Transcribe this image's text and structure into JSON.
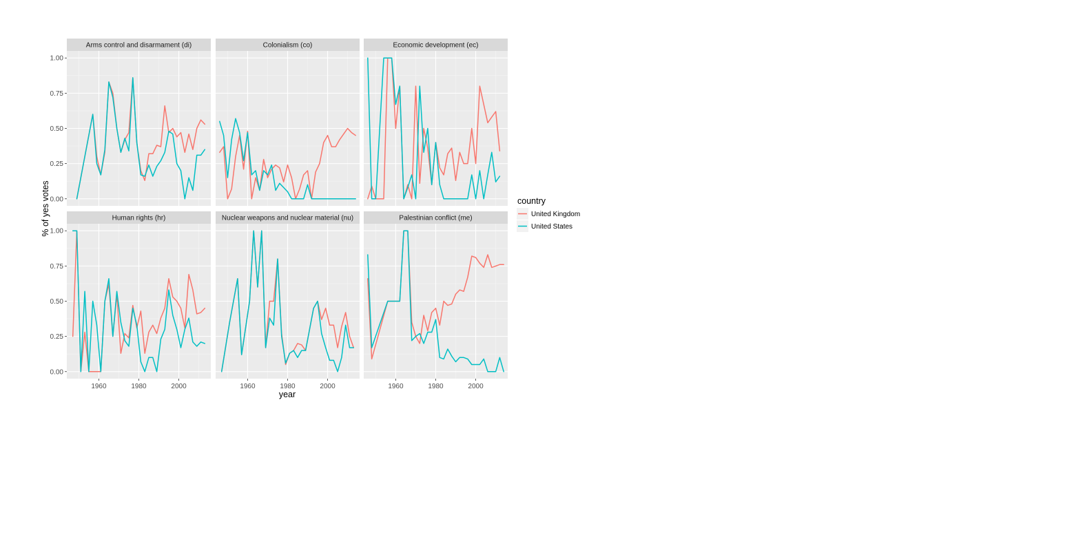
{
  "chart_data": {
    "type": "line",
    "facet_layout": "2x3 facet grid",
    "xlabel": "year",
    "ylabel": "% of yes votes",
    "xlim": [
      1944,
      2016
    ],
    "ylim": [
      -0.05,
      1.05
    ],
    "x_ticks": [
      1960,
      1980,
      2000
    ],
    "y_ticks": [
      0,
      0.25,
      0.5,
      0.75,
      1.0
    ],
    "y_tick_labels": [
      "0.00",
      "0.25",
      "0.50",
      "0.75",
      "1.00"
    ],
    "grid": true,
    "legend": {
      "title": "country",
      "position": "right",
      "entries": [
        {
          "name": "United Kingdom",
          "color": "#f8766d"
        },
        {
          "name": "United States",
          "color": "#00bfc4"
        }
      ]
    },
    "panels": [
      {
        "title": "Arms control and disarmament (di)",
        "series": [
          {
            "name": "United Kingdom",
            "x": [
              1949,
              1953,
              1957,
              1959,
              1961,
              1963,
              1965,
              1967,
              1969,
              1971,
              1973,
              1975,
              1977,
              1979,
              1981,
              1983,
              1985,
              1987,
              1989,
              1991,
              1993,
              1995,
              1997,
              1999,
              2001,
              2003,
              2005,
              2007,
              2009,
              2011,
              2013
            ],
            "y": [
              0,
              0.3,
              0.6,
              0.3,
              0.17,
              0.33,
              0.83,
              0.75,
              0.5,
              0.33,
              0.42,
              0.47,
              0.86,
              0.4,
              0.2,
              0.13,
              0.32,
              0.32,
              0.38,
              0.37,
              0.66,
              0.47,
              0.5,
              0.44,
              0.47,
              0.33,
              0.46,
              0.35,
              0.5,
              0.56,
              0.53
            ]
          },
          {
            "name": "United States",
            "x": [
              1949,
              1953,
              1957,
              1959,
              1961,
              1963,
              1965,
              1967,
              1969,
              1971,
              1973,
              1975,
              1977,
              1979,
              1981,
              1983,
              1985,
              1987,
              1989,
              1991,
              1993,
              1995,
              1997,
              1999,
              2001,
              2003,
              2005,
              2007,
              2009,
              2011,
              2013
            ],
            "y": [
              0,
              0.3,
              0.6,
              0.25,
              0.17,
              0.35,
              0.83,
              0.72,
              0.5,
              0.33,
              0.43,
              0.34,
              0.86,
              0.4,
              0.17,
              0.16,
              0.24,
              0.16,
              0.23,
              0.27,
              0.33,
              0.48,
              0.46,
              0.25,
              0.2,
              0,
              0.15,
              0.06,
              0.31,
              0.31,
              0.35
            ]
          }
        ]
      },
      {
        "title": "Colonialism (co)",
        "series": [
          {
            "name": "United Kingdom",
            "x": [
              1946,
              1948,
              1950,
              1952,
              1954,
              1956,
              1958,
              1960,
              1962,
              1964,
              1966,
              1968,
              1970,
              1972,
              1974,
              1976,
              1978,
              1980,
              1982,
              1984,
              1986,
              1988,
              1990,
              1992,
              1994,
              1996,
              1998,
              2000,
              2002,
              2004,
              2006,
              2008,
              2010,
              2012,
              2014
            ],
            "y": [
              0.33,
              0.37,
              0,
              0.07,
              0.3,
              0.45,
              0.21,
              0.48,
              0,
              0.15,
              0.06,
              0.28,
              0.15,
              0.21,
              0.24,
              0.22,
              0.12,
              0.24,
              0.15,
              0,
              0.07,
              0.17,
              0.2,
              0,
              0.19,
              0.25,
              0.4,
              0.45,
              0.37,
              0.37,
              0.42,
              0.46,
              0.5,
              0.47,
              0.45
            ]
          },
          {
            "name": "United States",
            "x": [
              1946,
              1948,
              1950,
              1952,
              1954,
              1956,
              1958,
              1960,
              1962,
              1964,
              1966,
              1968,
              1970,
              1972,
              1974,
              1976,
              1978,
              1980,
              1982,
              1984,
              1986,
              1988,
              1990,
              1992,
              1994,
              1996,
              1998,
              2000,
              2002,
              2004,
              2006,
              2008,
              2010,
              2012,
              2014
            ],
            "y": [
              0.55,
              0.45,
              0.15,
              0.42,
              0.57,
              0.47,
              0.27,
              0.47,
              0.17,
              0.2,
              0.06,
              0.2,
              0.17,
              0.24,
              0.06,
              0.11,
              0.08,
              0.05,
              0,
              0,
              0,
              0,
              0.1,
              0,
              0,
              0,
              0,
              0,
              0,
              0,
              0,
              0,
              0,
              0,
              0
            ]
          }
        ]
      },
      {
        "title": "Economic development (ec)",
        "series": [
          {
            "name": "United Kingdom",
            "x": [
              1946,
              1948,
              1950,
              1954,
              1956,
              1958,
              1960,
              1962,
              1964,
              1966,
              1968,
              1970,
              1972,
              1974,
              1976,
              1978,
              1980,
              1982,
              1984,
              1986,
              1988,
              1990,
              1992,
              1994,
              1996,
              1998,
              2000,
              2002,
              2004,
              2006,
              2008,
              2010,
              2012
            ],
            "y": [
              0,
              0.09,
              0,
              0,
              1.0,
              1.0,
              0.5,
              0.8,
              0,
              0.1,
              0,
              0.8,
              0.11,
              0.5,
              0.36,
              0.1,
              0.4,
              0.22,
              0.17,
              0.32,
              0.36,
              0.13,
              0.33,
              0.25,
              0.25,
              0.5,
              0.25,
              0.8,
              0.67,
              0.54,
              0.58,
              0.62,
              0.34
            ]
          },
          {
            "name": "United States",
            "x": [
              1946,
              1948,
              1950,
              1954,
              1956,
              1958,
              1960,
              1962,
              1964,
              1966,
              1968,
              1970,
              1972,
              1974,
              1976,
              1978,
              1980,
              1982,
              1984,
              1986,
              1988,
              1990,
              1992,
              1994,
              1996,
              1998,
              2000,
              2002,
              2004,
              2006,
              2008,
              2010,
              2012
            ],
            "y": [
              1.0,
              0,
              0,
              1.0,
              1.0,
              1.0,
              0.67,
              0.8,
              0,
              0.08,
              0.17,
              0,
              0.8,
              0.33,
              0.5,
              0.1,
              0.4,
              0.1,
              0,
              0,
              0,
              0,
              0,
              0,
              0,
              0.17,
              0,
              0.2,
              0,
              0.17,
              0.33,
              0.12,
              0.16
            ]
          }
        ]
      },
      {
        "title": "Human rights (hr)",
        "series": [
          {
            "name": "United Kingdom",
            "x": [
              1947,
              1949,
              1951,
              1953,
              1955,
              1957,
              1959,
              1961,
              1963,
              1965,
              1967,
              1969,
              1971,
              1973,
              1975,
              1977,
              1979,
              1981,
              1983,
              1985,
              1987,
              1989,
              1991,
              1993,
              1995,
              1997,
              1999,
              2001,
              2003,
              2005,
              2007,
              2009,
              2011,
              2013
            ],
            "y": [
              0.25,
              1.0,
              0,
              0.28,
              0,
              0,
              0,
              0,
              0.5,
              0.62,
              0.25,
              0.55,
              0.13,
              0.27,
              0.24,
              0.47,
              0.31,
              0.43,
              0.13,
              0.28,
              0.33,
              0.27,
              0.38,
              0.45,
              0.66,
              0.53,
              0.5,
              0.45,
              0.31,
              0.69,
              0.58,
              0.41,
              0.42,
              0.45
            ]
          },
          {
            "name": "United States",
            "x": [
              1947,
              1949,
              1951,
              1953,
              1955,
              1957,
              1959,
              1961,
              1963,
              1965,
              1967,
              1969,
              1971,
              1973,
              1975,
              1977,
              1979,
              1981,
              1983,
              1985,
              1987,
              1989,
              1991,
              1993,
              1995,
              1997,
              1999,
              2001,
              2003,
              2005,
              2007,
              2009,
              2011,
              2013
            ],
            "y": [
              1.0,
              1.0,
              0,
              0.57,
              0,
              0.5,
              0.33,
              0,
              0.5,
              0.66,
              0.25,
              0.57,
              0.35,
              0.22,
              0.18,
              0.45,
              0.33,
              0.07,
              0,
              0.1,
              0.1,
              0,
              0.23,
              0.3,
              0.58,
              0.4,
              0.3,
              0.17,
              0.3,
              0.38,
              0.21,
              0.18,
              0.21,
              0.2
            ]
          }
        ]
      },
      {
        "title": "Nuclear weapons and nuclear material (nu)",
        "series": [
          {
            "name": "United Kingdom",
            "x": [
              1947,
              1951,
              1955,
              1957,
              1961,
              1963,
              1965,
              1967,
              1969,
              1971,
              1973,
              1975,
              1977,
              1979,
              1981,
              1983,
              1985,
              1987,
              1989,
              1991,
              1993,
              1995,
              1997,
              1999,
              2001,
              2003,
              2005,
              2007,
              2009,
              2011,
              2013
            ],
            "y": [
              0,
              0.35,
              0.66,
              0.12,
              0.5,
              1.0,
              0.6,
              1.0,
              0.17,
              0.5,
              0.5,
              0.8,
              0.27,
              0.05,
              0.13,
              0.15,
              0.2,
              0.19,
              0.15,
              0.3,
              0.45,
              0.5,
              0.37,
              0.45,
              0.33,
              0.33,
              0.17,
              0.32,
              0.42,
              0.25,
              0.17
            ]
          },
          {
            "name": "United States",
            "x": [
              1947,
              1951,
              1955,
              1957,
              1961,
              1963,
              1965,
              1967,
              1969,
              1971,
              1973,
              1975,
              1977,
              1979,
              1981,
              1983,
              1985,
              1987,
              1989,
              1991,
              1993,
              1995,
              1997,
              1999,
              2001,
              2003,
              2005,
              2007,
              2009,
              2011,
              2013
            ],
            "y": [
              0,
              0.35,
              0.66,
              0.12,
              0.5,
              1.0,
              0.6,
              1.0,
              0.17,
              0.38,
              0.33,
              0.8,
              0.25,
              0.06,
              0.13,
              0.15,
              0.1,
              0.15,
              0.15,
              0.3,
              0.45,
              0.5,
              0.27,
              0.17,
              0.08,
              0.08,
              0,
              0.1,
              0.33,
              0.17,
              0.17
            ]
          }
        ]
      },
      {
        "title": "Palestinian conflict (me)",
        "series": [
          {
            "name": "United Kingdom",
            "x": [
              1946,
              1948,
              1956,
              1958,
              1962,
              1964,
              1966,
              1968,
              1970,
              1972,
              1974,
              1976,
              1978,
              1980,
              1982,
              1984,
              1986,
              1988,
              1990,
              1992,
              1994,
              1996,
              1998,
              2000,
              2002,
              2004,
              2006,
              2008,
              2010,
              2012,
              2014
            ],
            "y": [
              0.66,
              0.09,
              0.5,
              0.5,
              0.5,
              1.0,
              1.0,
              0.35,
              0.25,
              0.2,
              0.4,
              0.29,
              0.42,
              0.45,
              0.33,
              0.5,
              0.47,
              0.48,
              0.55,
              0.58,
              0.57,
              0.67,
              0.82,
              0.81,
              0.77,
              0.74,
              0.83,
              0.74,
              0.75,
              0.76,
              0.76
            ]
          },
          {
            "name": "United States",
            "x": [
              1946,
              1948,
              1956,
              1958,
              1962,
              1964,
              1966,
              1968,
              1970,
              1972,
              1974,
              1976,
              1978,
              1980,
              1982,
              1984,
              1986,
              1988,
              1990,
              1992,
              1994,
              1996,
              1998,
              2000,
              2002,
              2004,
              2006,
              2008,
              2010,
              2012,
              2014
            ],
            "y": [
              0.83,
              0.17,
              0.5,
              0.5,
              0.5,
              1.0,
              1.0,
              0.22,
              0.25,
              0.27,
              0.2,
              0.28,
              0.28,
              0.37,
              0.1,
              0.09,
              0.16,
              0.11,
              0.07,
              0.1,
              0.1,
              0.09,
              0.05,
              0.05,
              0.05,
              0.09,
              0,
              0,
              0,
              0.1,
              0
            ]
          }
        ]
      }
    ]
  }
}
